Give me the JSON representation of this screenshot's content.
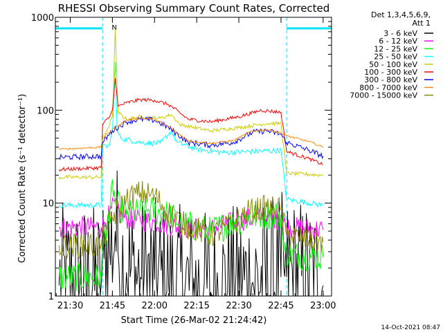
{
  "chart_data": {
    "type": "line",
    "title": "RHESSI Observing Summary Count Rates, Corrected",
    "xlabel": "Start Time (26-Mar-02 21:24:42)",
    "ylabel": "Corrected Count Rate (s⁻¹ detector⁻¹)",
    "y_scale": "log",
    "ylim": [
      1,
      1000
    ],
    "xlim": [
      "21:24:42",
      "23:03:00"
    ],
    "x_ticks": [
      "21:30",
      "21:45",
      "22:00",
      "22:15",
      "22:30",
      "22:45",
      "23:00"
    ],
    "y_ticks": [
      "1",
      "10",
      "100",
      "1000"
    ],
    "legend_header": [
      "Det 1,3,4,5,6,9,",
      "Att 1"
    ],
    "legend_position": "top-right",
    "annotations": [
      {
        "text": "N",
        "at": "21:45"
      }
    ],
    "night_intervals": [
      [
        "21:24:42",
        "21:41:30"
      ],
      [
        "22:47:00",
        "23:03:00"
      ]
    ],
    "footer_date": "14-Oct-2021 08:47",
    "series": [
      {
        "name": "3 - 6 keV",
        "color": "#000000",
        "noise": 0.9,
        "points": [
          [
            "21:26",
            1.3
          ],
          [
            "21:41",
            1.3
          ],
          [
            "21:42",
            2.5
          ],
          [
            "21:44",
            3.0
          ],
          [
            "21:46",
            5.0
          ],
          [
            "21:47",
            3.0
          ],
          [
            "21:50",
            1.8
          ],
          [
            "21:55",
            1.6
          ],
          [
            "22:00",
            1.5
          ],
          [
            "22:05",
            1.3
          ],
          [
            "22:20",
            1.1
          ],
          [
            "22:35",
            1.4
          ],
          [
            "22:45",
            1.6
          ],
          [
            "22:46",
            2.0
          ],
          [
            "22:47",
            1.6
          ],
          [
            "23:00",
            1.3
          ]
        ]
      },
      {
        "name": "6 - 12 keV",
        "color": "#ff00ff",
        "noise": 0.12,
        "points": [
          [
            "21:26",
            5.5
          ],
          [
            "21:41",
            5.5
          ],
          [
            "21:42",
            6.0
          ],
          [
            "21:44",
            7.5
          ],
          [
            "21:46",
            10.0
          ],
          [
            "21:48",
            7.0
          ],
          [
            "21:55",
            6.5
          ],
          [
            "22:00",
            6.3
          ],
          [
            "22:10",
            5.5
          ],
          [
            "22:20",
            5.3
          ],
          [
            "22:30",
            6.5
          ],
          [
            "22:38",
            7.0
          ],
          [
            "22:45",
            6.8
          ],
          [
            "22:47",
            5.5
          ],
          [
            "23:00",
            5.2
          ]
        ]
      },
      {
        "name": "12 - 25 keV",
        "color": "#00ff00",
        "noise": 0.16,
        "points": [
          [
            "21:26",
            1.6
          ],
          [
            "21:41",
            1.6
          ],
          [
            "21:42",
            4.5
          ],
          [
            "21:44",
            6.0
          ],
          [
            "21:45",
            18.0
          ],
          [
            "21:46",
            10.0
          ],
          [
            "21:50",
            7.5
          ],
          [
            "21:58",
            8.5
          ],
          [
            "22:05",
            7.5
          ],
          [
            "22:10",
            6.0
          ],
          [
            "22:20",
            5.0
          ],
          [
            "22:30",
            6.5
          ],
          [
            "22:38",
            7.5
          ],
          [
            "22:45",
            7.5
          ],
          [
            "22:46",
            3.0
          ],
          [
            "22:48",
            2.8
          ],
          [
            "23:00",
            2.6
          ]
        ]
      },
      {
        "name": "25 - 50 keV",
        "color": "#00ffff",
        "noise": 0.03,
        "points": [
          [
            "21:26",
            9.5
          ],
          [
            "21:41",
            9.5
          ],
          [
            "21:41:30",
            40.0
          ],
          [
            "21:44",
            42.0
          ],
          [
            "21:45",
            60.0
          ],
          [
            "21:46",
            330.0
          ],
          [
            "21:46:40",
            60.0
          ],
          [
            "21:48",
            50.0
          ],
          [
            "21:55",
            45.0
          ],
          [
            "22:02",
            44.0
          ],
          [
            "22:06",
            60.0
          ],
          [
            "22:08",
            45.0
          ],
          [
            "22:15",
            38.0
          ],
          [
            "22:25",
            35.0
          ],
          [
            "22:35",
            36.0
          ],
          [
            "22:45",
            37.0
          ],
          [
            "22:47",
            11.0
          ],
          [
            "23:00",
            9.5
          ]
        ]
      },
      {
        "name": "50 - 100 keV",
        "color": "#cccc00",
        "noise": 0.02,
        "points": [
          [
            "21:26",
            19.0
          ],
          [
            "21:41",
            19.0
          ],
          [
            "21:41:30",
            50.0
          ],
          [
            "21:44",
            70.0
          ],
          [
            "21:45",
            85.0
          ],
          [
            "21:46",
            750.0
          ],
          [
            "21:47",
            95.0
          ],
          [
            "21:50",
            80.0
          ],
          [
            "21:55",
            85.0
          ],
          [
            "22:02",
            82.0
          ],
          [
            "22:06",
            90.0
          ],
          [
            "22:09",
            70.0
          ],
          [
            "22:20",
            60.0
          ],
          [
            "22:30",
            65.0
          ],
          [
            "22:40",
            72.0
          ],
          [
            "22:45",
            72.0
          ],
          [
            "22:47",
            21.0
          ],
          [
            "23:00",
            20.0
          ]
        ]
      },
      {
        "name": "100 - 300 keV",
        "color": "#ff0000",
        "noise": 0.02,
        "points": [
          [
            "21:26",
            23.0
          ],
          [
            "21:41",
            24.0
          ],
          [
            "21:41:30",
            70.0
          ],
          [
            "21:44",
            85.0
          ],
          [
            "21:45",
            100.0
          ],
          [
            "21:46",
            220.0
          ],
          [
            "21:47",
            110.0
          ],
          [
            "21:50",
            120.0
          ],
          [
            "21:55",
            130.0
          ],
          [
            "22:00",
            128.0
          ],
          [
            "22:05",
            115.0
          ],
          [
            "22:12",
            80.0
          ],
          [
            "22:20",
            75.0
          ],
          [
            "22:30",
            85.0
          ],
          [
            "22:38",
            100.0
          ],
          [
            "22:45",
            95.0
          ],
          [
            "22:47",
            36.0
          ],
          [
            "22:55",
            30.0
          ],
          [
            "23:00",
            26.0
          ]
        ]
      },
      {
        "name": "300 - 800 keV",
        "color": "#0000ff",
        "noise": 0.03,
        "points": [
          [
            "21:26",
            31.0
          ],
          [
            "21:41",
            32.0
          ],
          [
            "21:41:30",
            45.0
          ],
          [
            "21:45",
            60.0
          ],
          [
            "21:50",
            75.0
          ],
          [
            "21:55",
            80.0
          ],
          [
            "22:00",
            78.0
          ],
          [
            "22:05",
            65.0
          ],
          [
            "22:12",
            45.0
          ],
          [
            "22:20",
            42.0
          ],
          [
            "22:28",
            45.0
          ],
          [
            "22:35",
            58.0
          ],
          [
            "22:40",
            60.0
          ],
          [
            "22:45",
            55.0
          ],
          [
            "22:47",
            45.0
          ],
          [
            "22:55",
            37.0
          ],
          [
            "23:00",
            32.0
          ]
        ]
      },
      {
        "name": "800 - 7000 keV",
        "color": "#ff8800",
        "noise": 0.01,
        "points": [
          [
            "21:26",
            38.0
          ],
          [
            "21:41",
            40.0
          ],
          [
            "21:41:30",
            50.0
          ],
          [
            "21:45",
            62.0
          ],
          [
            "21:50",
            78.0
          ],
          [
            "21:55",
            82.0
          ],
          [
            "22:00",
            80.0
          ],
          [
            "22:05",
            67.0
          ],
          [
            "22:12",
            47.0
          ],
          [
            "22:20",
            44.0
          ],
          [
            "22:28",
            47.0
          ],
          [
            "22:35",
            60.0
          ],
          [
            "22:40",
            62.0
          ],
          [
            "22:45",
            57.0
          ],
          [
            "22:47",
            53.0
          ],
          [
            "22:55",
            46.0
          ],
          [
            "23:00",
            40.0
          ]
        ]
      },
      {
        "name": "7000 - 15000 keV",
        "color": "#888800",
        "noise": 0.14,
        "points": [
          [
            "21:26",
            3.5
          ],
          [
            "21:41",
            3.5
          ],
          [
            "21:42",
            4.5
          ],
          [
            "21:45",
            7.0
          ],
          [
            "21:50",
            11.0
          ],
          [
            "21:55",
            13.0
          ],
          [
            "22:00",
            12.0
          ],
          [
            "22:05",
            8.0
          ],
          [
            "22:10",
            6.0
          ],
          [
            "22:20",
            4.5
          ],
          [
            "22:28",
            6.0
          ],
          [
            "22:33",
            8.0
          ],
          [
            "22:40",
            9.0
          ],
          [
            "22:45",
            8.5
          ],
          [
            "22:47",
            4.5
          ],
          [
            "22:55",
            4.0
          ],
          [
            "23:00",
            3.8
          ]
        ]
      }
    ]
  }
}
